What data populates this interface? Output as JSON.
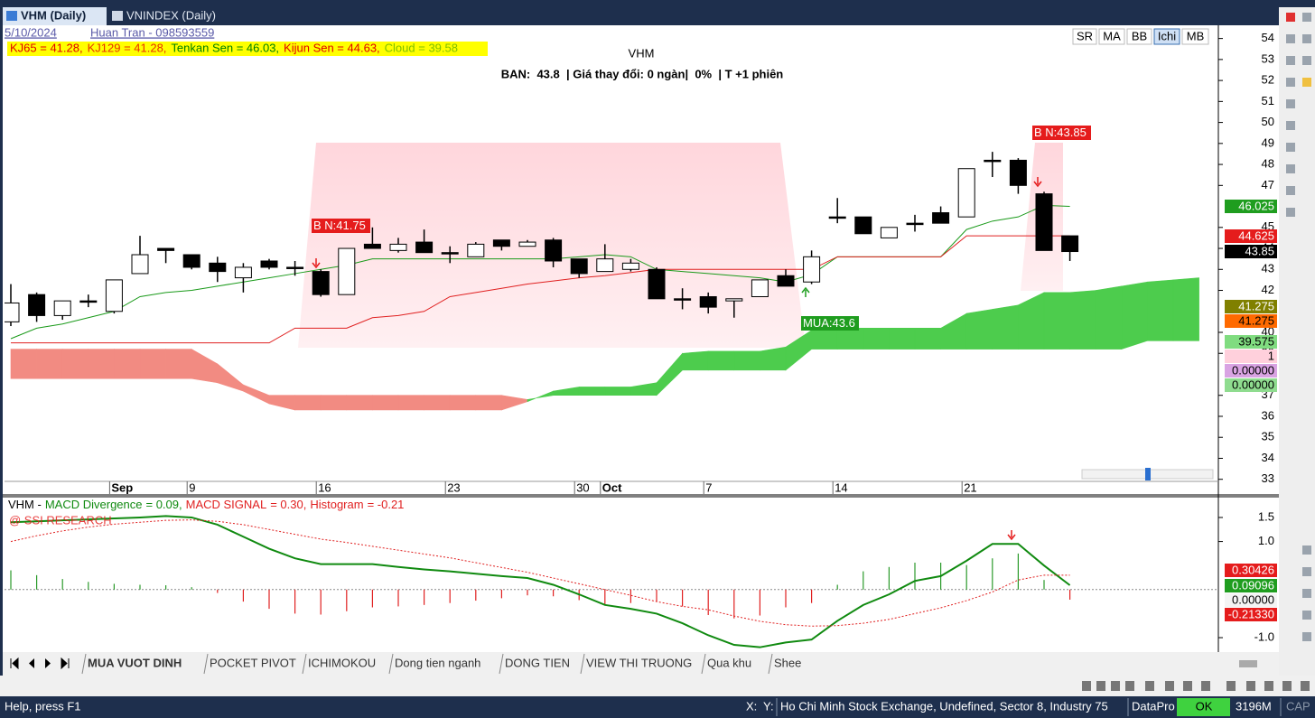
{
  "window_tabs": [
    "VHM (Daily)",
    "VNINDEX (Daily)"
  ],
  "header": {
    "date": "5/10/2024",
    "author": "Huan Tran - 098593559"
  },
  "toolbar_buttons": [
    "SR",
    "MA",
    "BB",
    "Ichi",
    "MB"
  ],
  "sheet_tabs": [
    "MUA VUOT DINH",
    "POCKET PIVOT",
    "ICHIMOKOU",
    "Dong tien nganh",
    "DONG TIEN",
    "VIEW THI TRUONG",
    "Qua khu",
    "Shee"
  ],
  "status": {
    "help": "Help, press F1",
    "x": "X:",
    "y": "Y:",
    "exchange": "Ho Chi Minh Stock Exchange, Undefined, Sector 8, Industry 75",
    "source": "DataPro",
    "ok": "OK",
    "memory": "3196M",
    "cap": "CAP"
  },
  "chart_data": [
    {
      "type": "candlestick",
      "title": "VHM",
      "subtitle": "BAN:  43.8  | Giá thay đổi: 0 ngàn|  0%  | T +1 phiên",
      "legend": [
        {
          "text": "KJ65 = 41.28,",
          "color": "#e00000"
        },
        {
          "text": "KJ129 = 41.28,",
          "color": "#e83000"
        },
        {
          "text": "Tenkan Sen = 46.03,",
          "color": "#008000"
        },
        {
          "text": "Kijun Sen = 44.63,",
          "color": "#e00000"
        },
        {
          "text": "Cloud = 39.58",
          "color": "#7fc000"
        }
      ],
      "categories": [
        null,
        null,
        null,
        null,
        "Sep",
        null,
        null,
        "9",
        null,
        null,
        null,
        null,
        "16",
        null,
        null,
        null,
        null,
        "23",
        null,
        null,
        null,
        null,
        "30",
        "Oct",
        null,
        null,
        null,
        "7",
        null,
        null,
        null,
        null,
        "14",
        null,
        null,
        null,
        null,
        "21",
        null,
        null,
        null,
        null
      ],
      "open": [
        40.5,
        41.8,
        40.8,
        41.5,
        41.0,
        42.8,
        44.0,
        43.7,
        43.3,
        42.6,
        43.4,
        43.1,
        42.9,
        41.8,
        44.2,
        43.9,
        44.3,
        43.8,
        43.6,
        44.4,
        44.1,
        44.4,
        43.5,
        42.9,
        43.0,
        43.0,
        41.6,
        41.7,
        41.5,
        41.7,
        42.7,
        42.4,
        45.5,
        45.5,
        44.5,
        45.2,
        45.7,
        45.5,
        48.2,
        48.2,
        46.6,
        44.6
      ],
      "high": [
        42.3,
        41.9,
        41.5,
        41.8,
        42.5,
        44.6,
        44.0,
        43.7,
        43.6,
        43.3,
        43.5,
        43.4,
        43.0,
        44.0,
        45.0,
        44.5,
        44.9,
        44.1,
        44.3,
        44.4,
        44.4,
        44.5,
        43.5,
        44.2,
        43.5,
        43.1,
        42.1,
        41.9,
        41.6,
        42.5,
        43.0,
        43.9,
        46.4,
        45.5,
        45.0,
        45.6,
        46.0,
        47.8,
        48.6,
        48.3,
        46.7,
        44.6
      ],
      "low": [
        40.3,
        40.5,
        40.6,
        41.2,
        40.9,
        42.8,
        43.3,
        43.0,
        42.4,
        41.9,
        43.0,
        42.7,
        41.7,
        41.8,
        44.0,
        43.8,
        43.8,
        43.3,
        43.6,
        43.9,
        44.1,
        43.1,
        42.6,
        42.9,
        42.9,
        41.6,
        41.1,
        40.9,
        40.7,
        41.7,
        42.2,
        42.3,
        45.2,
        44.7,
        44.5,
        44.8,
        45.2,
        45.5,
        47.4,
        46.6,
        43.9,
        43.4
      ],
      "close": [
        41.4,
        40.8,
        41.5,
        41.5,
        42.5,
        43.7,
        43.9,
        43.1,
        42.9,
        43.1,
        43.1,
        43.1,
        41.8,
        44.0,
        44.0,
        44.2,
        43.8,
        43.8,
        44.2,
        44.1,
        44.3,
        43.4,
        42.8,
        43.5,
        43.3,
        41.6,
        41.6,
        41.2,
        41.6,
        42.5,
        42.2,
        43.6,
        45.5,
        44.7,
        45.0,
        45.2,
        45.2,
        47.8,
        48.2,
        47.0,
        43.9,
        43.85
      ],
      "tenkan": {
        "color": "#1a9a1a",
        "values": [
          39.7,
          40.2,
          40.4,
          40.7,
          41.0,
          41.7,
          41.9,
          42.0,
          42.2,
          42.4,
          42.6,
          42.8,
          43.0,
          43.2,
          43.5,
          43.5,
          43.5,
          43.5,
          43.5,
          43.5,
          43.5,
          43.5,
          43.6,
          43.7,
          43.6,
          43.0,
          42.9,
          42.8,
          42.7,
          42.6,
          42.4,
          42.75,
          43.6,
          43.6,
          43.6,
          43.6,
          43.6,
          44.9,
          45.3,
          45.5,
          46.05,
          46.0
        ]
      },
      "kijun": {
        "color": "#e02020",
        "values": [
          39.5,
          39.5,
          39.5,
          39.5,
          39.5,
          39.5,
          39.5,
          39.5,
          39.5,
          39.5,
          39.5,
          40.2,
          40.2,
          40.2,
          40.7,
          40.8,
          41.0,
          41.7,
          41.9,
          42.1,
          42.3,
          42.45,
          42.6,
          42.7,
          42.85,
          43.0,
          43.0,
          43.0,
          43.0,
          43.0,
          43.0,
          43.0,
          43.6,
          43.6,
          43.6,
          43.6,
          43.6,
          44.6,
          44.6,
          44.6,
          44.6,
          44.6
        ]
      },
      "cloud": {
        "up_color": "#4dcc4d",
        "down_color": "#f28b82",
        "span_a": [
          37.8,
          37.8,
          37.8,
          37.8,
          37.8,
          37.8,
          37.8,
          37.8,
          37.6,
          37.2,
          36.6,
          36.3,
          36.3,
          36.3,
          36.3,
          36.3,
          36.3,
          36.3,
          36.3,
          36.3,
          36.7,
          37.2,
          37.4,
          37.4,
          37.4,
          37.6,
          39.0,
          39.1,
          39.1,
          39.1,
          39.3,
          40.1,
          40.2,
          40.2,
          40.2,
          40.2,
          40.2,
          40.9,
          41.1,
          41.3,
          41.9,
          41.9,
          42.0,
          42.2,
          42.4,
          42.5,
          42.6
        ],
        "span_b": [
          39.2,
          39.2,
          39.2,
          39.2,
          39.2,
          39.2,
          39.2,
          39.2,
          38.5,
          37.5,
          37.0,
          37.0,
          37.0,
          37.0,
          37.0,
          37.0,
          37.0,
          37.0,
          37.0,
          37.0,
          36.8,
          37.0,
          37.0,
          37.0,
          37.0,
          37.0,
          38.2,
          38.2,
          38.2,
          38.2,
          38.2,
          39.2,
          39.2,
          39.2,
          39.2,
          39.2,
          39.2,
          39.2,
          39.2,
          39.2,
          39.2,
          39.2,
          39.2,
          39.2,
          39.6,
          39.6,
          39.6
        ]
      },
      "ylim": [
        32.6,
        54.5
      ],
      "yticks": [
        54,
        53,
        52,
        51,
        50,
        49,
        48,
        47,
        45,
        44,
        43,
        42,
        40,
        39,
        37,
        36,
        35,
        34,
        33
      ],
      "annotations": [
        "B N:41.75",
        "MUA:43.6",
        "B N:43.85"
      ],
      "value_tags": [
        {
          "text": "46.025",
          "bg": "#1f9d1f",
          "fg": "#fff"
        },
        {
          "text": "44.625",
          "bg": "#e51c1c",
          "fg": "#fff"
        },
        {
          "text": "43.85",
          "bg": "#000",
          "fg": "#fff"
        },
        {
          "text": "41.275",
          "bg": "#808000",
          "fg": "#fff"
        },
        {
          "text": "41.275",
          "bg": "#ff6a00",
          "fg": "#000"
        },
        {
          "text": "39.575",
          "bg": "#80dc80",
          "fg": "#000"
        },
        {
          "text": "1",
          "bg": "#ffd0dc",
          "fg": "#000"
        },
        {
          "text": "0.00000",
          "bg": "#d9a3e3",
          "fg": "#000"
        },
        {
          "text": "0.00000",
          "bg": "#8fdc8f",
          "fg": "#000"
        }
      ]
    },
    {
      "type": "line",
      "legend_prefix": "VHM -",
      "watermark": "@ SSI RESEARCH",
      "series": [
        {
          "name": "MACD Divergence",
          "legend_value": "= 0.09,",
          "color": "#108a10",
          "values": [
            1.4,
            1.42,
            1.44,
            1.46,
            1.48,
            1.5,
            1.53,
            1.5,
            1.35,
            1.1,
            0.85,
            0.65,
            0.53,
            0.53,
            0.53,
            0.47,
            0.42,
            0.38,
            0.33,
            0.28,
            0.24,
            0.1,
            -0.1,
            -0.32,
            -0.4,
            -0.5,
            -0.7,
            -0.95,
            -1.15,
            -1.2,
            -1.1,
            -1.04,
            -0.65,
            -0.32,
            -0.1,
            0.18,
            0.28,
            0.6,
            0.95,
            0.95,
            0.5,
            0.09
          ]
        },
        {
          "name": "MACD SIGNAL",
          "legend_value": "= 0.30,",
          "color": "#e02020",
          "values": [
            1.0,
            1.12,
            1.22,
            1.3,
            1.36,
            1.4,
            1.44,
            1.45,
            1.42,
            1.35,
            1.25,
            1.15,
            1.05,
            0.98,
            0.9,
            0.82,
            0.74,
            0.66,
            0.56,
            0.46,
            0.36,
            0.24,
            0.12,
            0.0,
            -0.12,
            -0.25,
            -0.35,
            -0.42,
            -0.55,
            -0.66,
            -0.73,
            -0.76,
            -0.75,
            -0.7,
            -0.62,
            -0.5,
            -0.38,
            -0.23,
            -0.05,
            0.2,
            0.3,
            0.3
          ]
        },
        {
          "name": "Histogram",
          "legend_value": "= -0.21",
          "color": "#e02020",
          "up_color": "#2a9a2a",
          "values": [
            0.4,
            0.3,
            0.22,
            0.16,
            0.12,
            0.1,
            0.09,
            0.05,
            -0.07,
            -0.25,
            -0.4,
            -0.5,
            -0.52,
            -0.45,
            -0.37,
            -0.35,
            -0.32,
            -0.28,
            -0.23,
            -0.18,
            -0.12,
            -0.14,
            -0.22,
            -0.32,
            -0.28,
            -0.25,
            -0.35,
            -0.53,
            -0.6,
            -0.54,
            -0.37,
            -0.28,
            0.1,
            0.38,
            0.47,
            0.56,
            0.56,
            0.51,
            0.65,
            0.75,
            0.2,
            -0.21
          ]
        }
      ],
      "ylim": [
        -1.3,
        1.8
      ],
      "yticks": [
        1.5,
        {
          "value": 1.0,
          "label": "1.0"
        },
        {
          "value": -1.0,
          "label": "-1.0"
        }
      ],
      "value_tags": [
        {
          "text": "0.30426",
          "bg": "#e51c1c",
          "fg": "#fff"
        },
        {
          "text": "0.09096",
          "bg": "#1f9d1f",
          "fg": "#fff"
        },
        {
          "text": "0.00000",
          "bg": "#f4f4f4",
          "fg": "#000"
        },
        {
          "text": "-0.21330",
          "bg": "#e51c1c",
          "fg": "#fff"
        }
      ]
    }
  ]
}
